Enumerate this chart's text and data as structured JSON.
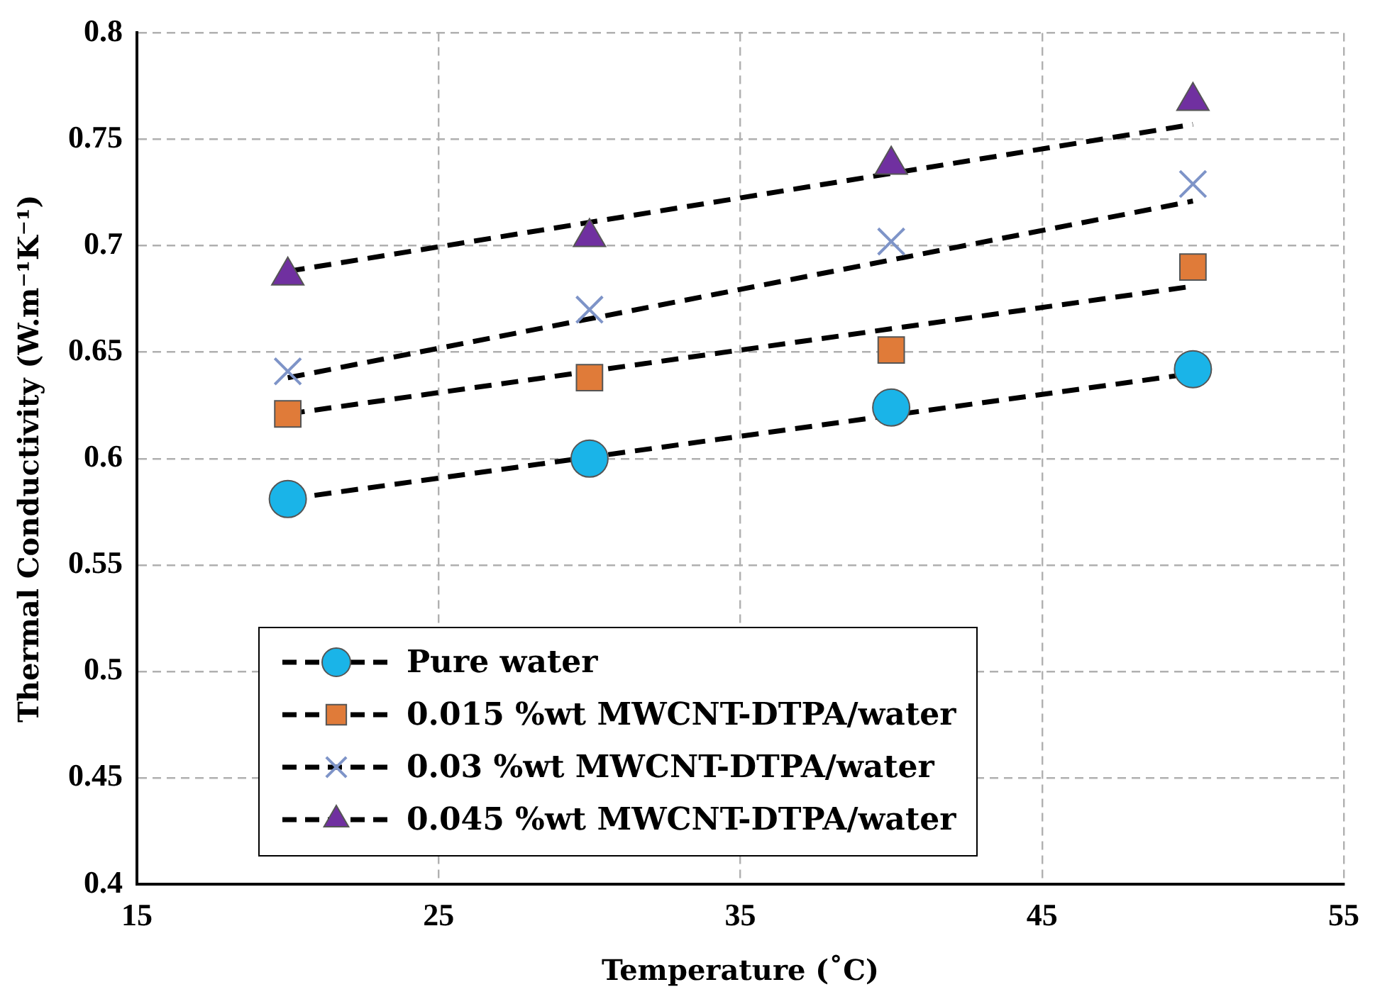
{
  "chart_data": {
    "type": "scatter",
    "xlabel": "Temperature (˚C)",
    "ylabel": "Thermal Conductivity (W.m⁻¹K⁻¹)",
    "xlim": [
      15,
      55
    ],
    "xticks": [
      15,
      25,
      35,
      45,
      55
    ],
    "ylim": [
      0.4,
      0.8
    ],
    "yticks": [
      0.4,
      0.45,
      0.5,
      0.55,
      0.6,
      0.65,
      0.7,
      0.75,
      0.8
    ],
    "grid": true,
    "legend": "bottom",
    "series": [
      {
        "type": "line",
        "color": "#000000",
        "line_style": "dashed",
        "marker": "none",
        "x": [
          20,
          50
        ],
        "values": [
          0.581,
          0.64
        ]
      },
      {
        "type": "line",
        "color": "#000000",
        "line_style": "dashed",
        "marker": "none",
        "x": [
          20,
          50
        ],
        "values": [
          0.621,
          0.681
        ]
      },
      {
        "type": "line",
        "color": "#000000",
        "line_style": "dashed",
        "marker": "none",
        "x": [
          20,
          50
        ],
        "values": [
          0.638,
          0.721
        ]
      },
      {
        "type": "line",
        "color": "#000000",
        "line_style": "dashed",
        "marker": "none",
        "x": [
          20,
          50
        ],
        "values": [
          0.688,
          0.757
        ]
      },
      {
        "name": "Pure water",
        "color": "#1ab4e8",
        "marker": "circle",
        "x": [
          20,
          30,
          40,
          50
        ],
        "values": [
          0.581,
          0.6,
          0.624,
          0.642
        ]
      },
      {
        "name": "0.015 %wt MWCNT-DTPA/water",
        "color": "#e07b39",
        "marker": "square",
        "x": [
          20,
          30,
          40,
          50
        ],
        "values": [
          0.621,
          0.638,
          0.651,
          0.69
        ]
      },
      {
        "name": "0.03 %wt MWCNT-DTPA/water",
        "color": "#7e94c8",
        "marker": "cross",
        "x": [
          20,
          30,
          40,
          50
        ],
        "values": [
          0.641,
          0.67,
          0.702,
          0.729
        ]
      },
      {
        "name": "0.045 %wt MWCNT-DTPA/water",
        "color": "#7030a0",
        "marker": "triangle",
        "x": [
          20,
          30,
          40,
          50
        ],
        "values": [
          0.686,
          0.704,
          0.738,
          0.768
        ]
      }
    ]
  }
}
